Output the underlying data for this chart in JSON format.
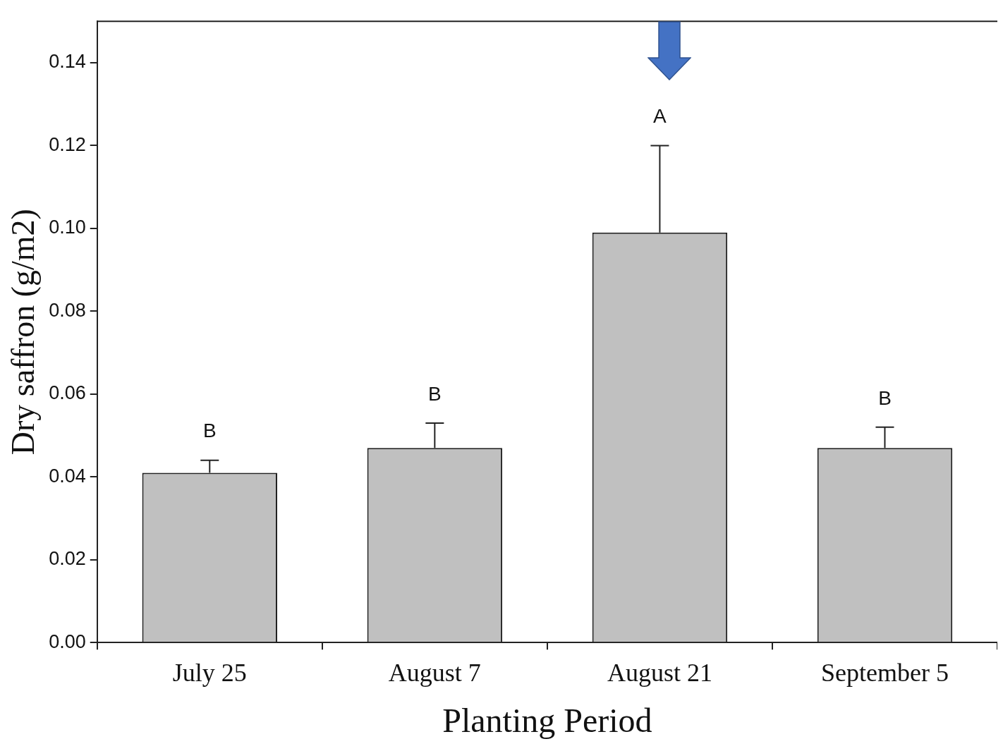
{
  "chart_data": {
    "type": "bar",
    "xlabel": "Planting Period",
    "ylabel": "Dry saffron (g/m2)",
    "categories": [
      "July 25",
      "August 7",
      "August 21",
      "September 5"
    ],
    "values": [
      0.041,
      0.047,
      0.099,
      0.047
    ],
    "errors": [
      [
        0.041,
        0.044
      ],
      [
        0.047,
        0.053
      ],
      [
        0.099,
        0.12
      ],
      [
        0.047,
        0.052
      ]
    ],
    "color": "#c0c0c0",
    "ylim": [
      0,
      0.15
    ],
    "yticks": [
      {
        "value": 0,
        "label": "0.00"
      },
      {
        "value": 0.02,
        "label": "0.02"
      },
      {
        "value": 0.04,
        "label": "0.04"
      },
      {
        "value": 0.06,
        "label": "0.06"
      },
      {
        "value": 0.08,
        "label": "0.08"
      },
      {
        "value": 0.1,
        "label": "0.10"
      },
      {
        "value": 0.12,
        "label": "0.12"
      },
      {
        "value": 0.14,
        "label": "0.14"
      }
    ],
    "annotations": [
      "B",
      "B",
      "A",
      "B"
    ],
    "grid": false,
    "legend": false
  }
}
